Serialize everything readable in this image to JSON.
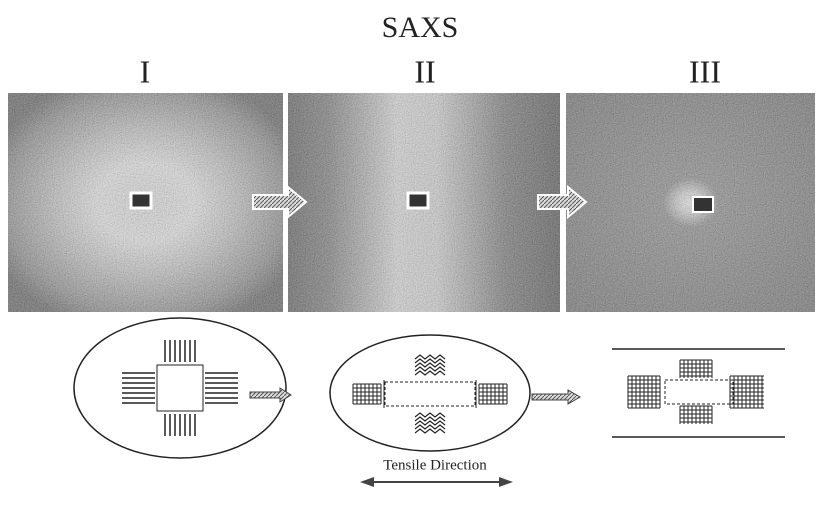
{
  "title": "SAXS",
  "panels": [
    {
      "label": "I"
    },
    {
      "label": "II"
    },
    {
      "label": "III"
    }
  ],
  "tensile_direction": "Tensile Direction"
}
